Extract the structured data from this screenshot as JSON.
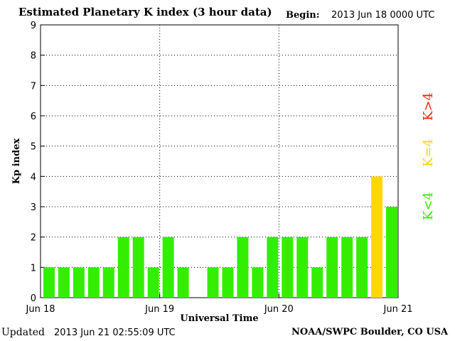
{
  "header": {
    "title": "Estimated Planetary K index (3 hour data)",
    "begin_label": "Begin:",
    "begin_value": "2013 Jun 18 0000 UTC"
  },
  "footer": {
    "updated_label": "Updated",
    "updated_value": "2013 Jun 21 02:55:09 UTC",
    "credit": "NOAA/SWPC Boulder, CO USA"
  },
  "legend": [
    {
      "label": "K<4",
      "color": "#33ee00"
    },
    {
      "label": "K=4",
      "color": "#ffd700"
    },
    {
      "label": "K>4",
      "color": "#ff2200"
    }
  ],
  "colors": {
    "low": "#33ee00",
    "moderate": "#ffd700",
    "high": "#ff2200"
  },
  "chart_data": {
    "type": "bar",
    "xlabel": "Universal Time",
    "ylabel": "Kp index",
    "ylim": [
      0,
      9
    ],
    "yticks": [
      0,
      1,
      2,
      3,
      4,
      5,
      6,
      7,
      8,
      9
    ],
    "grid": true,
    "x_ticks": [
      "Jun 18",
      "Jun 19",
      "Jun 20",
      "Jun 21"
    ],
    "interval_hours": 3,
    "values": [
      1,
      1,
      1,
      1,
      1,
      2,
      2,
      1,
      2,
      1,
      0,
      1,
      1,
      2,
      1,
      2,
      2,
      2,
      1,
      2,
      2,
      2,
      4,
      3
    ]
  }
}
